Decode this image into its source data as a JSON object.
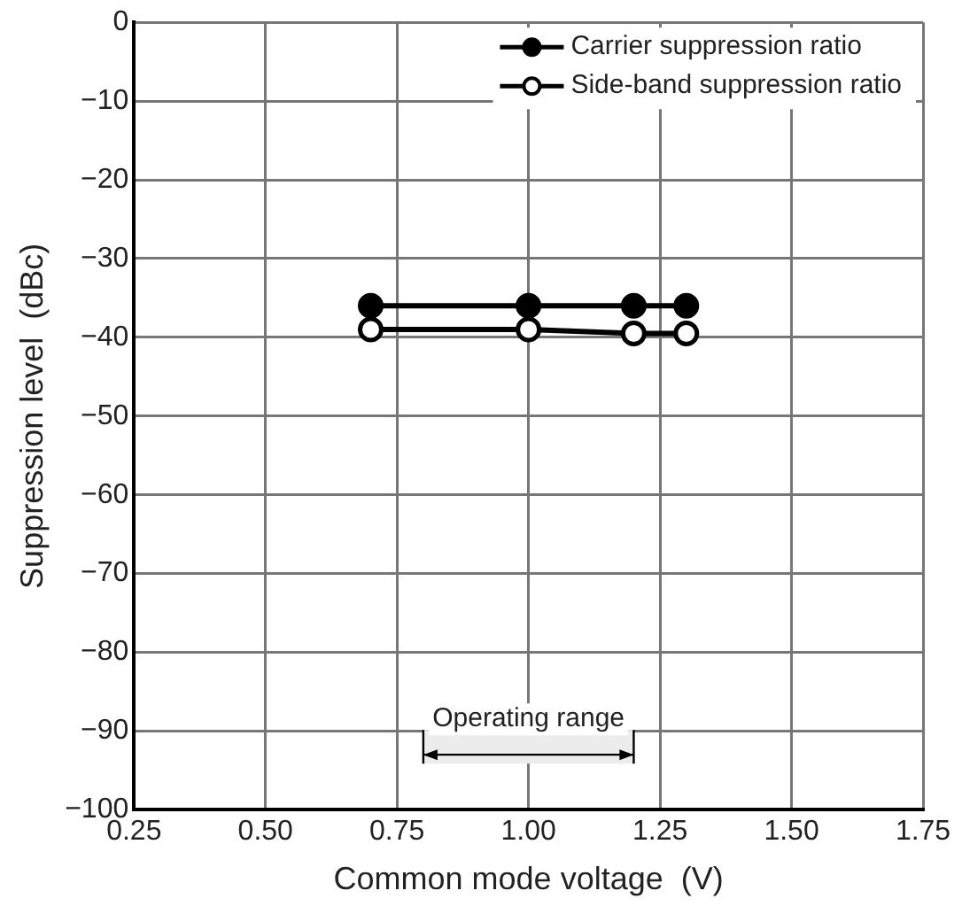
{
  "chart_data": {
    "type": "line",
    "xlabel": "Common mode voltage  (V)",
    "ylabel": "Suppression level  (dBc)",
    "x": [
      0.7,
      1.0,
      1.2,
      1.3
    ],
    "series": [
      {
        "name": "Carrier suppression ratio",
        "color": "#000000",
        "values": [
          -36,
          -36,
          -36,
          -36
        ]
      },
      {
        "name": "Side-band suppression ratio",
        "color": "#000000",
        "values": [
          -39,
          -39,
          -39.5,
          -39.5
        ]
      }
    ],
    "xlim": [
      0.25,
      1.75
    ],
    "xticks": [
      {
        "value": 0.25,
        "label": "0.25"
      },
      {
        "value": 0.5,
        "label": "0.50"
      },
      {
        "value": 0.75,
        "label": "0.75"
      },
      {
        "value": 1,
        "label": "1.00"
      },
      {
        "value": 1.25,
        "label": "1.25"
      },
      {
        "value": 1.5,
        "label": "1.50"
      },
      {
        "value": 1.75,
        "label": "1.75"
      }
    ],
    "ylim": [
      -100,
      0
    ],
    "yticks": [
      0,
      {
        "value": -10,
        "label": "−10"
      },
      {
        "value": -20,
        "label": "−20"
      },
      {
        "value": -30,
        "label": "−30"
      },
      {
        "value": -40,
        "label": "−40"
      },
      {
        "value": -50,
        "label": "−50"
      },
      {
        "value": -60,
        "label": "−60"
      },
      {
        "value": -70,
        "label": "−70"
      },
      {
        "value": -80,
        "label": "−80"
      },
      {
        "value": -90,
        "label": "−90"
      },
      {
        "value": -100,
        "label": "−100"
      }
    ],
    "bands": [
      {
        "axis": "x",
        "from": 0.8,
        "to": 1.2,
        "label": "Operating range"
      }
    ],
    "grid": true,
    "legend": "top right",
    "marker": "circle",
    "line_style": "solid"
  }
}
